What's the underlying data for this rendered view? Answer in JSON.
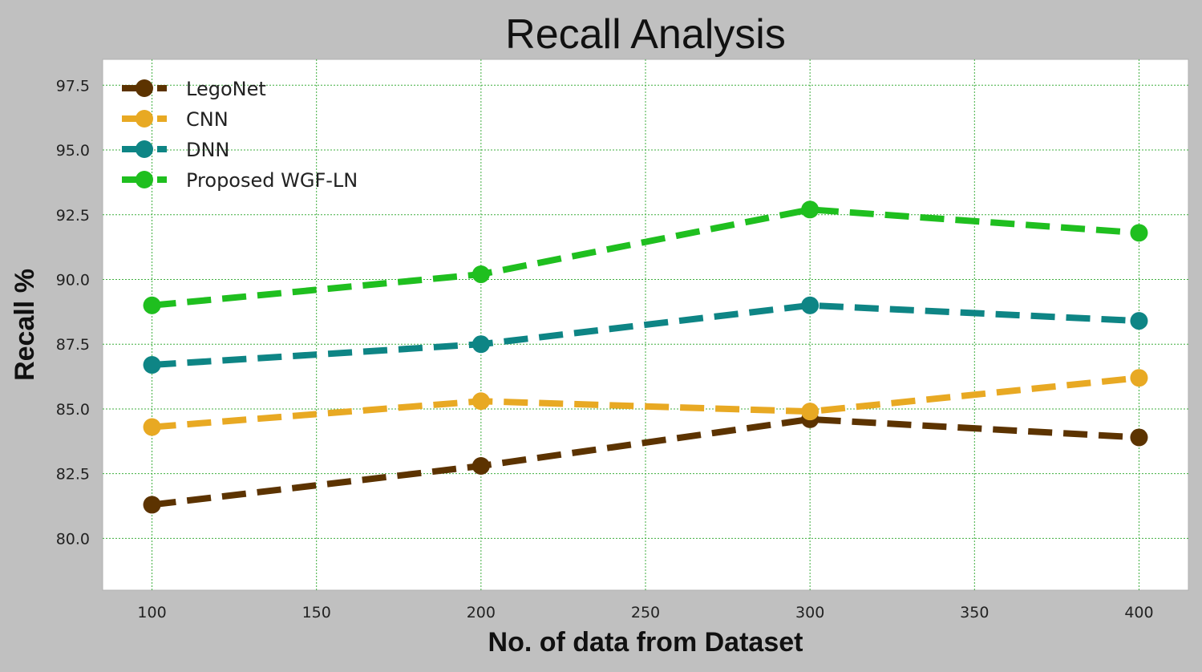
{
  "chart_data": {
    "type": "line",
    "title": "Recall Analysis",
    "xlabel": "No. of data from Dataset",
    "ylabel": "Recall %",
    "x": [
      100,
      200,
      300,
      400
    ],
    "xticks": [
      100,
      150,
      200,
      250,
      300,
      350,
      400
    ],
    "xtick_labels": [
      "100",
      "150",
      "200",
      "250",
      "300",
      "350",
      "400"
    ],
    "xlim": [
      85,
      415
    ],
    "yticks": [
      80.0,
      82.5,
      85.0,
      87.5,
      90.0,
      92.5,
      95.0,
      97.5
    ],
    "ytick_labels": [
      "80.0",
      "82.5",
      "85.0",
      "87.5",
      "90.0",
      "92.5",
      "95.0",
      "97.5"
    ],
    "ylim": [
      78,
      98.5
    ],
    "grid": true,
    "legend_position": "top-left",
    "series": [
      {
        "name": "LegoNet",
        "color": "#5c3300",
        "values": [
          81.3,
          82.8,
          84.6,
          83.9
        ]
      },
      {
        "name": "CNN",
        "color": "#e8a923",
        "values": [
          84.3,
          85.3,
          84.9,
          86.2
        ]
      },
      {
        "name": "DNN",
        "color": "#0e8585",
        "values": [
          86.7,
          87.5,
          89.0,
          88.4
        ]
      },
      {
        "name": "Proposed WGF-LN",
        "color": "#1fbf1f",
        "values": [
          89.0,
          90.2,
          92.7,
          91.8
        ]
      }
    ]
  }
}
